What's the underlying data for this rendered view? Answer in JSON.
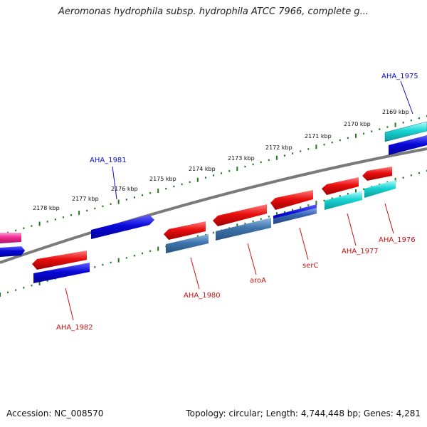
{
  "title": "Aeromonas hydrophila subsp. hydrophila ATCC 7966, complete g...",
  "footer": {
    "accession": "Accession: NC_008570",
    "stats": "Topology: circular; Length: 4,744,448 bp; Genes: 4,281"
  },
  "colors": {
    "backbone": "#7a7a7a",
    "ticks": "#1e7a1e",
    "label_forward": "#1010c8",
    "label_reverse": "#cc1010"
  },
  "ticks": [
    {
      "label": "2169 kbp"
    },
    {
      "label": "2170 kbp"
    },
    {
      "label": "2171 kbp"
    },
    {
      "label": "2172 kbp"
    },
    {
      "label": "2173 kbp"
    },
    {
      "label": "2174 kbp"
    },
    {
      "label": "2175 kbp"
    },
    {
      "label": "2176 kbp"
    },
    {
      "label": "2177 kbp"
    },
    {
      "label": "2178 kbp"
    }
  ],
  "genes": [
    {
      "name": "AHA_1975",
      "strand": "forward",
      "color": "#19d3d3"
    },
    {
      "name": "AHA_1976",
      "strand": "reverse",
      "color": "#e81010"
    },
    {
      "name": "AHA_1977",
      "strand": "reverse",
      "color": "#e81010"
    },
    {
      "name": "serC",
      "strand": "reverse",
      "color": "#e81010"
    },
    {
      "name": "aroA",
      "strand": "reverse",
      "color": "#e81010"
    },
    {
      "name": "AHA_1980",
      "strand": "reverse",
      "color": "#e81010"
    },
    {
      "name": "AHA_1981",
      "strand": "forward",
      "color": "#0a0ad8"
    },
    {
      "name": "AHA_1982",
      "strand": "reverse",
      "color": "#e81010"
    }
  ]
}
